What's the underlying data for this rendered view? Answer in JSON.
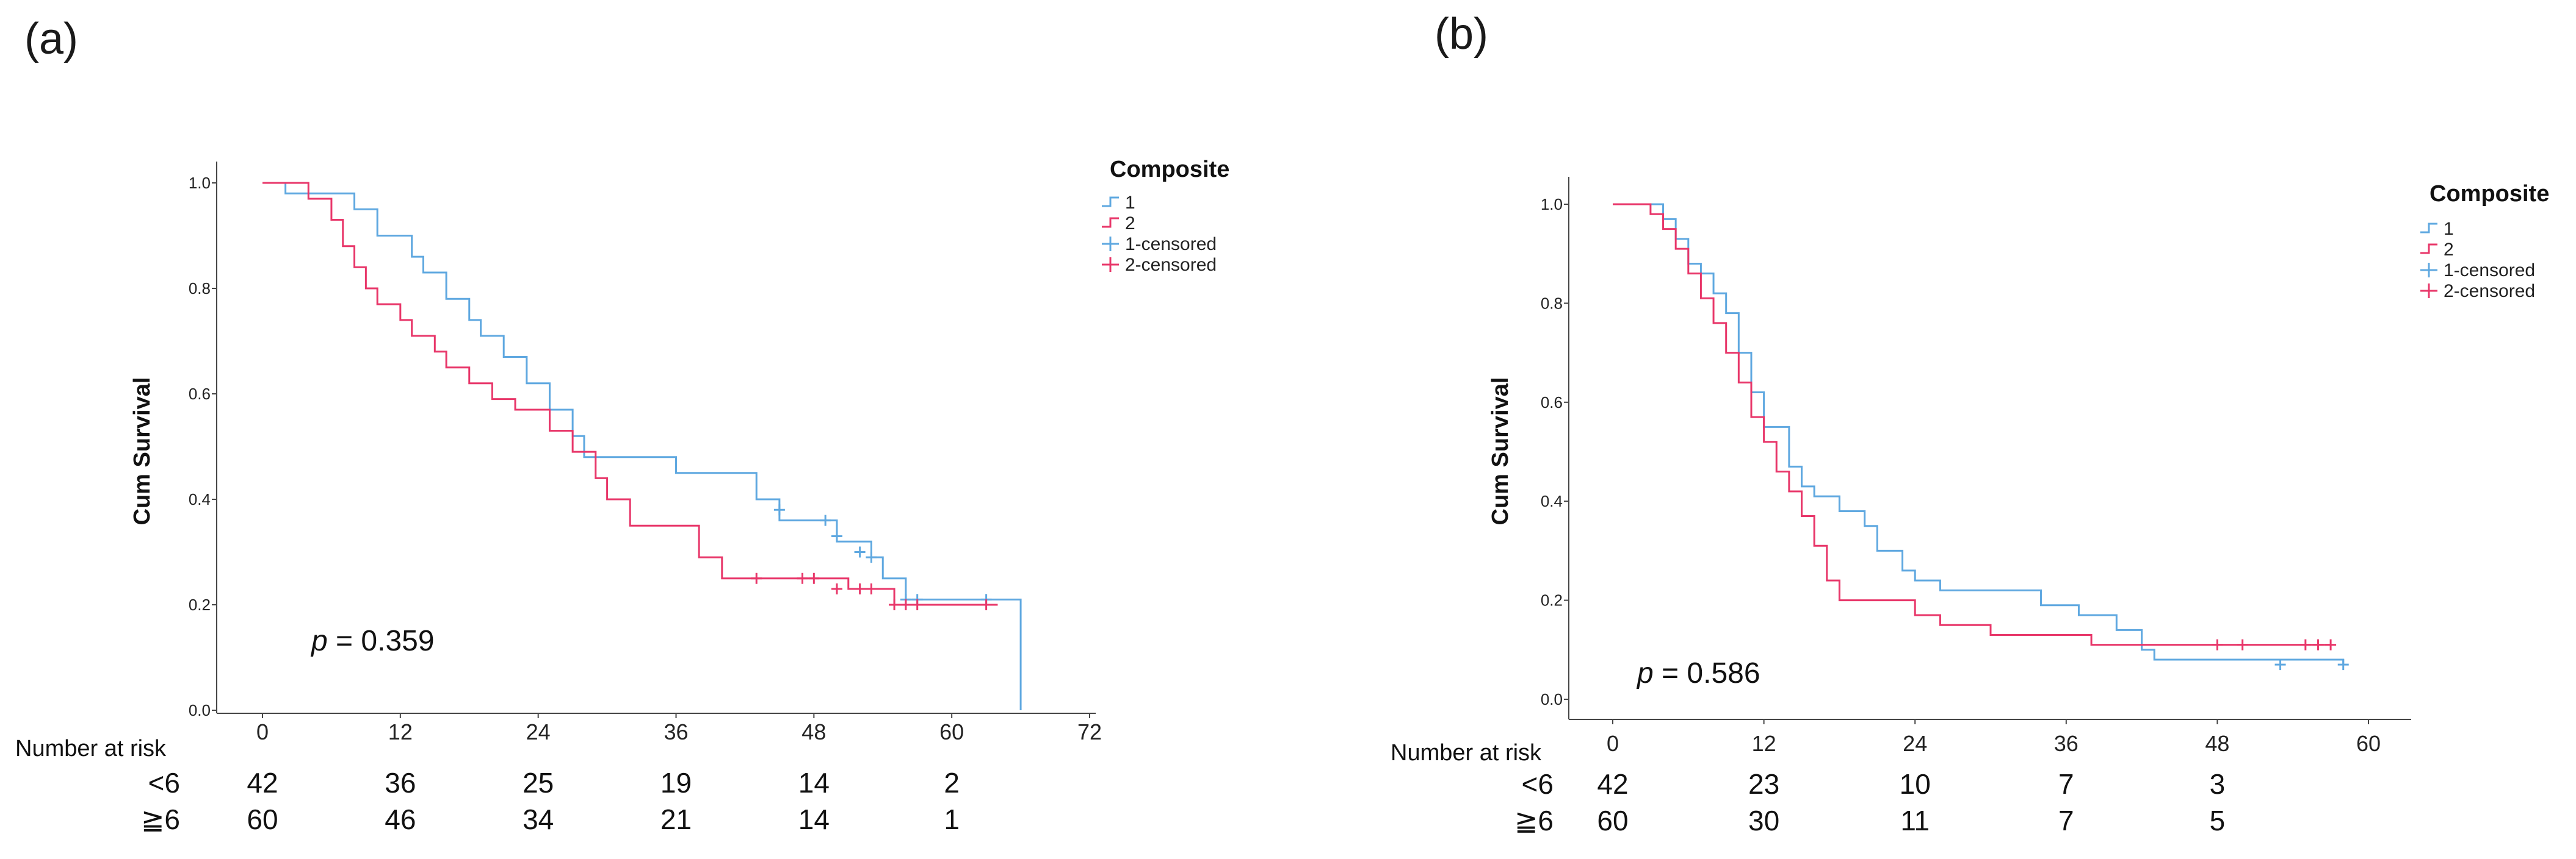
{
  "chart_data": [
    {
      "panel": "(a)",
      "type": "line",
      "ylabel": "Cum Survival",
      "xlabel": "",
      "ylim": [
        0.0,
        1.0
      ],
      "yticks": [
        "0.0",
        "0.2",
        "0.4",
        "0.6",
        "0.8",
        "1.0"
      ],
      "xlim": [
        0,
        72
      ],
      "xticks": [
        "0",
        "12",
        "24",
        "36",
        "48",
        "60",
        "72"
      ],
      "legend": {
        "title": "Composite",
        "entries": [
          "1",
          "2",
          "1-censored",
          "2-censored"
        ],
        "placement": "top-right"
      },
      "colors": {
        "1": "#5fa8e0",
        "2": "#e8376a"
      },
      "annotation": {
        "p_prefix": "p",
        "p_text": " = 0.359"
      },
      "series": [
        {
          "name": "1",
          "steps": [
            [
              0,
              1.0
            ],
            [
              2,
              0.98
            ],
            [
              8,
              0.95
            ],
            [
              10,
              0.9
            ],
            [
              13,
              0.86
            ],
            [
              14,
              0.83
            ],
            [
              16,
              0.78
            ],
            [
              18,
              0.74
            ],
            [
              19,
              0.71
            ],
            [
              21,
              0.67
            ],
            [
              23,
              0.62
            ],
            [
              25,
              0.57
            ],
            [
              27,
              0.52
            ],
            [
              28,
              0.48
            ],
            [
              31,
              0.48
            ],
            [
              36,
              0.45
            ],
            [
              43,
              0.4
            ],
            [
              45,
              0.36
            ],
            [
              50,
              0.32
            ],
            [
              53,
              0.29
            ],
            [
              54,
              0.25
            ],
            [
              56,
              0.21
            ],
            [
              66,
              0.21
            ],
            [
              66,
              0.0
            ]
          ],
          "censored": [
            [
              45,
              0.38
            ],
            [
              49,
              0.36
            ],
            [
              50,
              0.33
            ],
            [
              52,
              0.3
            ],
            [
              53,
              0.29
            ],
            [
              56,
              0.21
            ],
            [
              57,
              0.21
            ],
            [
              63,
              0.21
            ]
          ]
        },
        {
          "name": "2",
          "steps": [
            [
              0,
              1.0
            ],
            [
              4,
              0.97
            ],
            [
              6,
              0.93
            ],
            [
              7,
              0.88
            ],
            [
              8,
              0.84
            ],
            [
              9,
              0.8
            ],
            [
              10,
              0.77
            ],
            [
              12,
              0.74
            ],
            [
              13,
              0.71
            ],
            [
              15,
              0.68
            ],
            [
              16,
              0.65
            ],
            [
              18,
              0.62
            ],
            [
              20,
              0.59
            ],
            [
              22,
              0.57
            ],
            [
              25,
              0.53
            ],
            [
              27,
              0.49
            ],
            [
              29,
              0.44
            ],
            [
              30,
              0.4
            ],
            [
              32,
              0.35
            ],
            [
              36,
              0.35
            ],
            [
              38,
              0.29
            ],
            [
              40,
              0.25
            ],
            [
              48,
              0.25
            ],
            [
              51,
              0.23
            ],
            [
              55,
              0.2
            ],
            [
              64,
              0.2
            ]
          ],
          "censored": [
            [
              43,
              0.25
            ],
            [
              47,
              0.25
            ],
            [
              48,
              0.25
            ],
            [
              50,
              0.23
            ],
            [
              52,
              0.23
            ],
            [
              53,
              0.23
            ],
            [
              55,
              0.2
            ],
            [
              56,
              0.2
            ],
            [
              57,
              0.2
            ],
            [
              63,
              0.2
            ]
          ]
        }
      ],
      "risk_table": {
        "title": "Number at risk",
        "rows": [
          {
            "label": "<6",
            "values": [
              "42",
              "36",
              "25",
              "19",
              "14",
              "2"
            ]
          },
          {
            "label": "≧6",
            "values": [
              "60",
              "46",
              "34",
              "21",
              "14",
              "1"
            ]
          }
        ]
      }
    },
    {
      "panel": "(b)",
      "type": "line",
      "ylabel": "Cum Survival",
      "xlabel": "",
      "ylim": [
        0.0,
        1.0
      ],
      "yticks": [
        "0.0",
        "0.2",
        "0.4",
        "0.6",
        "0.8",
        "1.0"
      ],
      "xlim": [
        0,
        60
      ],
      "xticks": [
        "0",
        "12",
        "24",
        "36",
        "48",
        "60"
      ],
      "legend": {
        "title": "Composite",
        "entries": [
          "1",
          "2",
          "1-censored",
          "2-censored"
        ],
        "placement": "top-right"
      },
      "colors": {
        "1": "#5fa8e0",
        "2": "#e8376a"
      },
      "annotation": {
        "p_prefix": "p",
        "p_text": " = 0.586"
      },
      "series": [
        {
          "name": "1",
          "steps": [
            [
              0,
              1.0
            ],
            [
              4,
              0.97
            ],
            [
              5,
              0.93
            ],
            [
              6,
              0.88
            ],
            [
              7,
              0.86
            ],
            [
              8,
              0.82
            ],
            [
              9,
              0.78
            ],
            [
              10,
              0.7
            ],
            [
              11,
              0.62
            ],
            [
              12,
              0.55
            ],
            [
              14,
              0.47
            ],
            [
              15,
              0.43
            ],
            [
              16,
              0.41
            ],
            [
              18,
              0.38
            ],
            [
              20,
              0.35
            ],
            [
              21,
              0.3
            ],
            [
              23,
              0.26
            ],
            [
              24,
              0.24
            ],
            [
              26,
              0.22
            ],
            [
              34,
              0.19
            ],
            [
              37,
              0.17
            ],
            [
              40,
              0.14
            ],
            [
              42,
              0.1
            ],
            [
              43,
              0.08
            ],
            [
              58,
              0.07
            ]
          ],
          "censored": [
            [
              53,
              0.07
            ],
            [
              58,
              0.07
            ]
          ]
        },
        {
          "name": "2",
          "steps": [
            [
              0,
              1.0
            ],
            [
              3,
              0.98
            ],
            [
              4,
              0.95
            ],
            [
              5,
              0.91
            ],
            [
              6,
              0.86
            ],
            [
              7,
              0.81
            ],
            [
              8,
              0.76
            ],
            [
              9,
              0.7
            ],
            [
              10,
              0.64
            ],
            [
              11,
              0.57
            ],
            [
              12,
              0.52
            ],
            [
              13,
              0.46
            ],
            [
              14,
              0.42
            ],
            [
              15,
              0.37
            ],
            [
              16,
              0.31
            ],
            [
              17,
              0.24
            ],
            [
              18,
              0.2
            ],
            [
              24,
              0.17
            ],
            [
              26,
              0.15
            ],
            [
              30,
              0.13
            ],
            [
              38,
              0.11
            ],
            [
              57,
              0.11
            ]
          ],
          "censored": [
            [
              48,
              0.11
            ],
            [
              50,
              0.11
            ],
            [
              55,
              0.11
            ],
            [
              56,
              0.11
            ],
            [
              57,
              0.11
            ]
          ]
        }
      ],
      "risk_table": {
        "title": "Number at risk",
        "rows": [
          {
            "label": "<6",
            "values": [
              "42",
              "23",
              "10",
              "7",
              "3"
            ]
          },
          {
            "label": "≧6",
            "values": [
              "60",
              "30",
              "11",
              "7",
              "5"
            ]
          }
        ]
      }
    }
  ]
}
